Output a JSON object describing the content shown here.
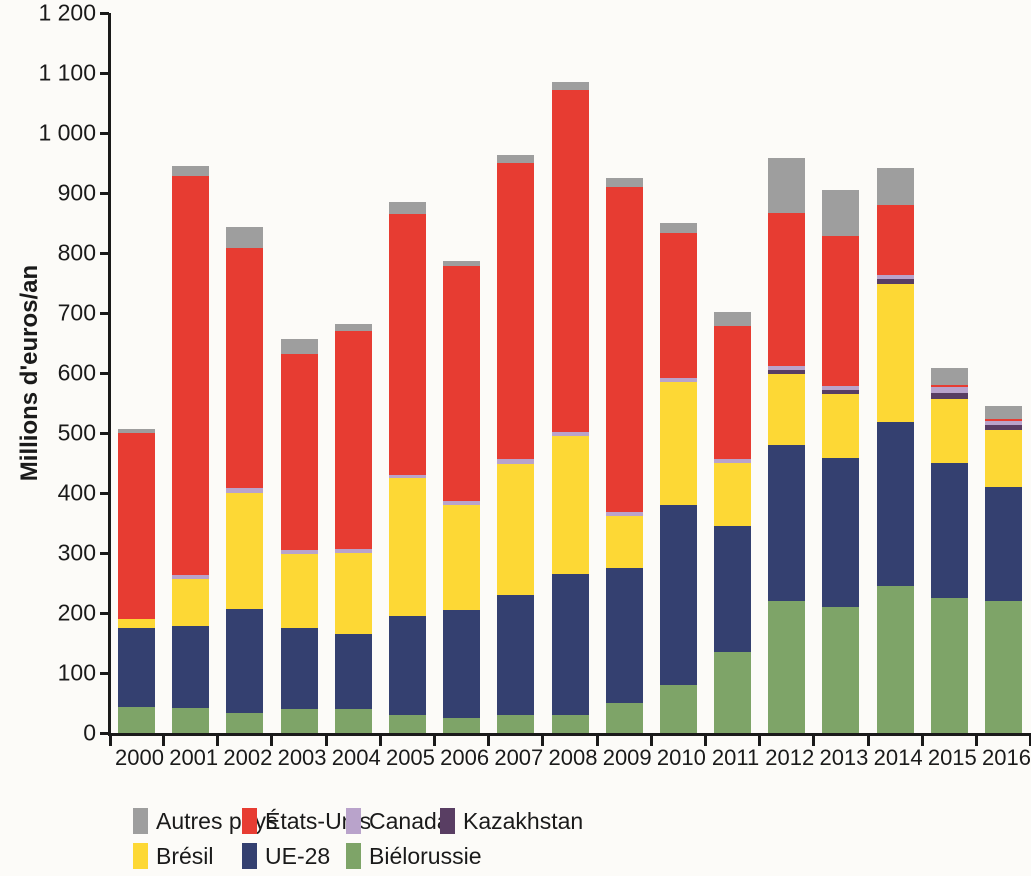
{
  "chart_data": {
    "type": "bar",
    "stacked": true,
    "stack_order": "bottom_to_top",
    "title": "",
    "xlabel": "",
    "ylabel": "Millions d'euros/an",
    "ylim": [
      0,
      1200
    ],
    "y_tick_step": 100,
    "y_tick_labels": [
      "0",
      "100",
      "200",
      "300",
      "400",
      "500",
      "600",
      "700",
      "800",
      "900",
      "1 000",
      "1 100",
      "1 200"
    ],
    "grid": false,
    "legend_position": "bottom",
    "categories": [
      "2000",
      "2001",
      "2002",
      "2003",
      "2004",
      "2005",
      "2006",
      "2007",
      "2008",
      "2009",
      "2010",
      "2011",
      "2012",
      "2013",
      "2014",
      "2015",
      "2016"
    ],
    "series": [
      {
        "name": "Biélorussie",
        "color": "#7ea468",
        "values": [
          43,
          42,
          33,
          40,
          40,
          30,
          25,
          30,
          30,
          50,
          80,
          135,
          220,
          210,
          245,
          225,
          220
        ]
      },
      {
        "name": "UE-28",
        "color": "#344070",
        "values": [
          132,
          136,
          174,
          135,
          125,
          165,
          180,
          200,
          235,
          225,
          300,
          210,
          260,
          248,
          273,
          225,
          190
        ]
      },
      {
        "name": "Brésil",
        "color": "#fdd835",
        "values": [
          15,
          79,
          193,
          123,
          135,
          230,
          175,
          218,
          230,
          87,
          205,
          105,
          118,
          107,
          230,
          107,
          95
        ]
      },
      {
        "name": "Kazakhstan",
        "color": "#593e63",
        "values": [
          0,
          0,
          0,
          0,
          0,
          0,
          0,
          0,
          0,
          0,
          0,
          0,
          7,
          7,
          8,
          9,
          8
        ]
      },
      {
        "name": "Canada",
        "color": "#b9a3cb",
        "values": [
          0,
          6,
          8,
          7,
          6,
          5,
          6,
          8,
          7,
          6,
          7,
          7,
          7,
          6,
          7,
          10,
          7
        ]
      },
      {
        "name": "États-Unis",
        "color": "#e73c32",
        "values": [
          310,
          665,
          400,
          327,
          364,
          435,
          392,
          494,
          570,
          542,
          241,
          221,
          255,
          250,
          117,
          4,
          4
        ]
      },
      {
        "name": "Autres pays",
        "color": "#9e9e9e",
        "values": [
          7,
          17,
          35,
          25,
          12,
          20,
          9,
          13,
          13,
          15,
          17,
          24,
          91,
          77,
          61,
          28,
          21
        ]
      }
    ],
    "totals": [
      507,
      945,
      843,
      657,
      682,
      885,
      787,
      963,
      1085,
      925,
      850,
      702,
      958,
      905,
      941,
      608,
      545
    ],
    "legend_rows": [
      [
        "Autres pays",
        "États-Unis",
        "Canada",
        "Kazakhstan"
      ],
      [
        "Brésil",
        "UE-28",
        "Biélorussie"
      ]
    ]
  }
}
